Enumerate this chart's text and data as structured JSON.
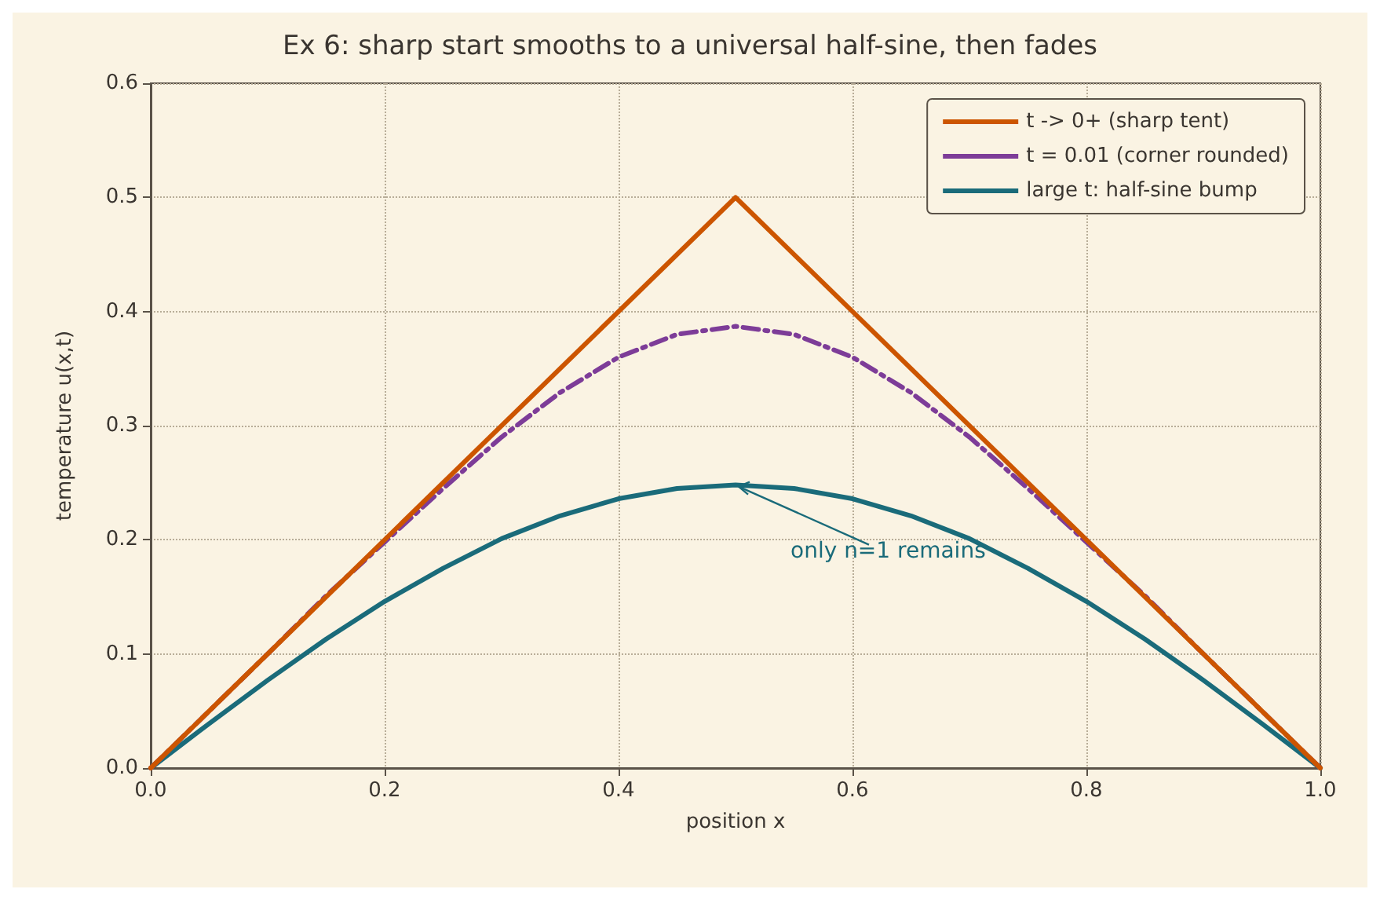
{
  "chart_data": {
    "type": "line",
    "title": "Ex 6: sharp start smooths to a universal half-sine, then fades",
    "xlabel": "position x",
    "ylabel": "temperature u(x,t)",
    "x": [
      0,
      0.05,
      0.1,
      0.15,
      0.2,
      0.25,
      0.3,
      0.35,
      0.4,
      0.45,
      0.5,
      0.55,
      0.6,
      0.65,
      0.7,
      0.75,
      0.8,
      0.85,
      0.9,
      0.95,
      1
    ],
    "series": [
      {
        "name": "t -> 0+ (sharp tent)",
        "color": "#cc5500",
        "line_style": "solid",
        "x": [
          0,
          0.5,
          1
        ],
        "values": [
          0,
          0.5,
          0
        ]
      },
      {
        "name": "t = 0.01 (corner rounded)",
        "color": "#7d3c98",
        "line_style": "dashed",
        "values": [
          0,
          0.05,
          0.1,
          0.151,
          0.198,
          0.245,
          0.29,
          0.329,
          0.36,
          0.38,
          0.387,
          0.38,
          0.36,
          0.329,
          0.29,
          0.245,
          0.198,
          0.151,
          0.1,
          0.05,
          0
        ]
      },
      {
        "name": "large t: half-sine bump",
        "color": "#1a6b7a",
        "line_style": "solid",
        "values": [
          0,
          0.039,
          0.077,
          0.113,
          0.146,
          0.175,
          0.201,
          0.221,
          0.236,
          0.245,
          0.248,
          0.245,
          0.236,
          0.221,
          0.201,
          0.175,
          0.146,
          0.113,
          0.077,
          0.039,
          0
        ]
      }
    ],
    "annotations": [
      {
        "text": "only n=1 remains",
        "x": 0.5,
        "y": 0.248
      }
    ],
    "xlim": [
      0,
      1
    ],
    "xticks": [
      {
        "value": 0,
        "label": "0.0"
      },
      0.2,
      0.4,
      0.6,
      0.8,
      {
        "value": 1,
        "label": "1.0"
      }
    ],
    "ylim": [
      0,
      0.6
    ],
    "yticks": [
      {
        "value": 0,
        "label": "0.0"
      },
      0.1,
      0.2,
      0.3,
      0.4,
      0.5,
      0.6
    ],
    "grid": true,
    "legend": "top right",
    "marker": "none"
  }
}
